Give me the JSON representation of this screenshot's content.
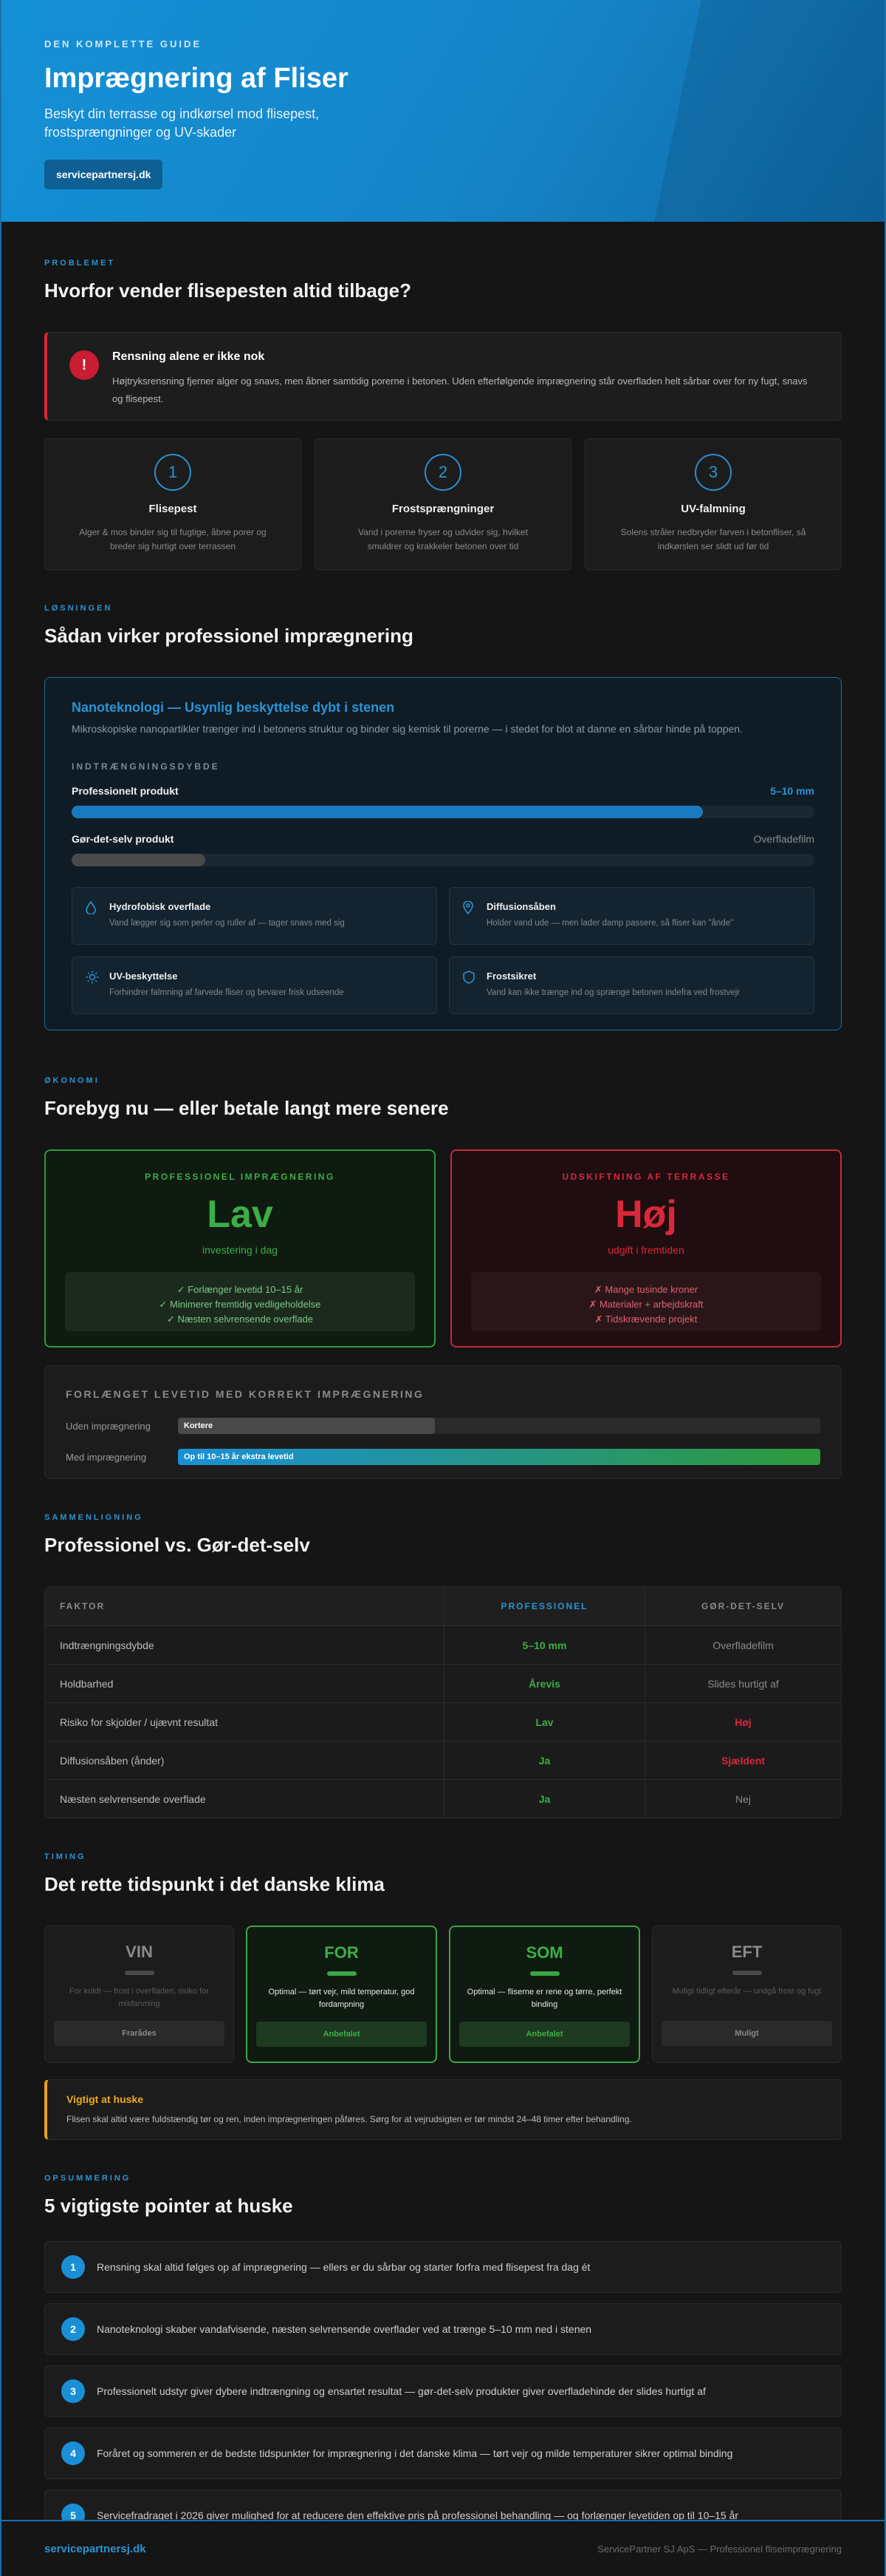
{
  "hero": {
    "eyebrow": "DEN KOMPLETTE GUIDE",
    "title": "Imprægnering af Fliser",
    "subtitle": "Beskyt din terrasse og indkørsel mod flisepest, frostsprængninger og UV-skader",
    "button": "servicepartnersj.dk"
  },
  "problem": {
    "eyebrow": "PROBLEMET",
    "title": "Hvorfor vender flisepesten altid tilbage?",
    "alert_icon": "!",
    "alert_title": "Rensning alene er ikke nok",
    "alert_text": "Højtryksrensning fjerner alger og snavs, men åbner samtidig porerne i betonen. Uden efterfølgende imprægnering står overfladen helt sårbar over for ny fugt, snavs og flisepest.",
    "cards": [
      {
        "num": "1",
        "title": "Flisepest",
        "desc": "Alger & mos binder sig til fugtige, åbne porer og breder sig hurtigt over terrassen"
      },
      {
        "num": "2",
        "title": "Frostsprængninger",
        "desc": "Vand i porerne fryser og udvider sig, hvilket smuldrer og krakkeler betonen over tid"
      },
      {
        "num": "3",
        "title": "UV-falmning",
        "desc": "Solens stråler nedbryder farven i betonfliser, så indkørslen ser slidt ud før tid"
      }
    ]
  },
  "solution": {
    "eyebrow": "LØSNINGEN",
    "title": "Sådan virker professionel imprægnering",
    "box_title": "Nanoteknologi — Usynlig beskyttelse dybt i stenen",
    "box_sub": "Mikroskopiske nanopartikler trænger ind i betonens struktur og binder sig kemisk til porerne — i stedet for blot at danne en sårbar hinde på toppen.",
    "depth_label": "INDTRÆNGNINGSDYBDE",
    "bars": [
      {
        "name": "Professionelt produkt",
        "value": "5–10 mm",
        "level": 0.85,
        "color": "#1a79bf"
      },
      {
        "name": "Gør-det-selv produkt",
        "value": "Overfladefilm",
        "level": 0.18,
        "color": "#4a4a4a"
      }
    ],
    "features": [
      {
        "icon": "drop-icon",
        "glyph": "💧",
        "title": "Hydrofobisk overflade",
        "desc": "Vand lægger sig som perler og ruller af — tager snavs med sig"
      },
      {
        "icon": "pin-icon",
        "glyph": "◎",
        "title": "Diffusionsåben",
        "desc": "Holder vand ude — men lader damp passere, så fliser kan \"ånde\""
      },
      {
        "icon": "sun-icon",
        "glyph": "☼",
        "title": "UV-beskyttelse",
        "desc": "Forhindrer falmning af farvede fliser og bevarer frisk udseende"
      },
      {
        "icon": "shield-icon",
        "glyph": "⛉",
        "title": "Frostsikret",
        "desc": "Vand kan ikke trænge ind og sprænge betonen indefra ved frostvejr"
      }
    ]
  },
  "economy": {
    "eyebrow": "ØKONOMI",
    "title": "Forebyg nu — eller betale langt mere senere",
    "left": {
      "label": "PROFESSIONEL IMPRÆGNERING",
      "big": "Lav",
      "caption": "investering i dag",
      "items": [
        "✓ Forlænger levetid 10–15 år",
        "✓ Minimerer fremtidig vedligeholdelse",
        "✓ Næsten selvrensende overflade"
      ]
    },
    "right": {
      "label": "UDSKIFTNING AF TERRASSE",
      "big": "Høj",
      "caption": "udgift i fremtiden",
      "items": [
        "✗ Mange tusinde kroner",
        "✗ Materialer + arbejdskraft",
        "✗ Tidskrævende projekt"
      ]
    },
    "life_title": "FORLÆNGET LEVETID MED KORREKT IMPRÆGNERING",
    "life_rows": [
      {
        "label": "Uden imprægnering",
        "bar": "Kortere",
        "level": 0.4
      },
      {
        "label": "Med imprægnering",
        "bar": "Op til 10–15 år ekstra levetid",
        "level": 1.0
      }
    ]
  },
  "compare": {
    "eyebrow": "SAMMENLIGNING",
    "title": "Professionel vs. Gør-det-selv",
    "headers": [
      "FAKTOR",
      "PROFESSIONEL",
      "GØR-DET-SELV"
    ],
    "rows": [
      {
        "factor": "Indtrængningsdybde",
        "pro": "5–10 mm",
        "diy": "Overfladefilm",
        "diy_bad": false
      },
      {
        "factor": "Holdbarhed",
        "pro": "Årevis",
        "diy": "Slides hurtigt af",
        "diy_bad": false
      },
      {
        "factor": "Risiko for skjolder / ujævnt resultat",
        "pro": "Lav",
        "diy": "Høj",
        "diy_bad": true
      },
      {
        "factor": "Diffusionsåben (ånder)",
        "pro": "Ja",
        "diy": "Sjældent",
        "diy_bad": true
      },
      {
        "factor": "Næsten selvrensende overflade",
        "pro": "Ja",
        "diy": "Nej",
        "diy_bad": false
      }
    ]
  },
  "timing": {
    "eyebrow": "TIMING",
    "title": "Det rette tidspunkt i det danske klima",
    "seasons": [
      {
        "name": "VIN",
        "desc": "For koldt — frost i overfladen, risiko for misfarvning",
        "tag": "Frarådes",
        "on": false
      },
      {
        "name": "FOR",
        "desc": "Optimal — tørt vejr, mild temperatur, god fordampning",
        "tag": "Anbefalet",
        "on": true
      },
      {
        "name": "SOM",
        "desc": "Optimal — fliserne er rene og tørre, perfekt binding",
        "tag": "Anbefalet",
        "on": true
      },
      {
        "name": "EFT",
        "desc": "Muligt tidligt efterår — undgå frost og fugt",
        "tag": "Muligt",
        "on": false
      }
    ],
    "tip_title": "Vigtigt at huske",
    "tip_text": "Flisen skal altid være fuldstændig tør og ren, inden imprægneringen påføres. Sørg for at vejrudsigten er tør mindst 24–48 timer efter behandling."
  },
  "summary": {
    "eyebrow": "OPSUMMERING",
    "title": "5 vigtigste pointer at huske",
    "points": [
      {
        "num": "1",
        "text": "Rensning skal altid følges op af imprægnering — ellers er du sårbar og starter forfra med flisepest fra dag ét"
      },
      {
        "num": "2",
        "text": "Nanoteknologi skaber vandafvisende, næsten selvrensende overflader ved at trænge 5–10 mm ned i stenen"
      },
      {
        "num": "3",
        "text": "Professionelt udstyr giver dybere indtrængning og ensartet resultat — gør-det-selv produkter giver overfladehinde der slides hurtigt af"
      },
      {
        "num": "4",
        "text": "Foråret og sommeren er de bedste tidspunkter for imprægnering i det danske klima — tørt vejr og milde temperaturer sikrer optimal binding"
      },
      {
        "num": "5",
        "text": "Servicefradraget i 2026 giver mulighed for at reducere den effektive pris på professionel behandling — og forlænger levetiden op til 10–15 år"
      }
    ]
  },
  "footer": {
    "brand": "servicepartnersj.dk",
    "copy": "ServicePartner SJ ApS — Professionel fliseimprægnering"
  }
}
